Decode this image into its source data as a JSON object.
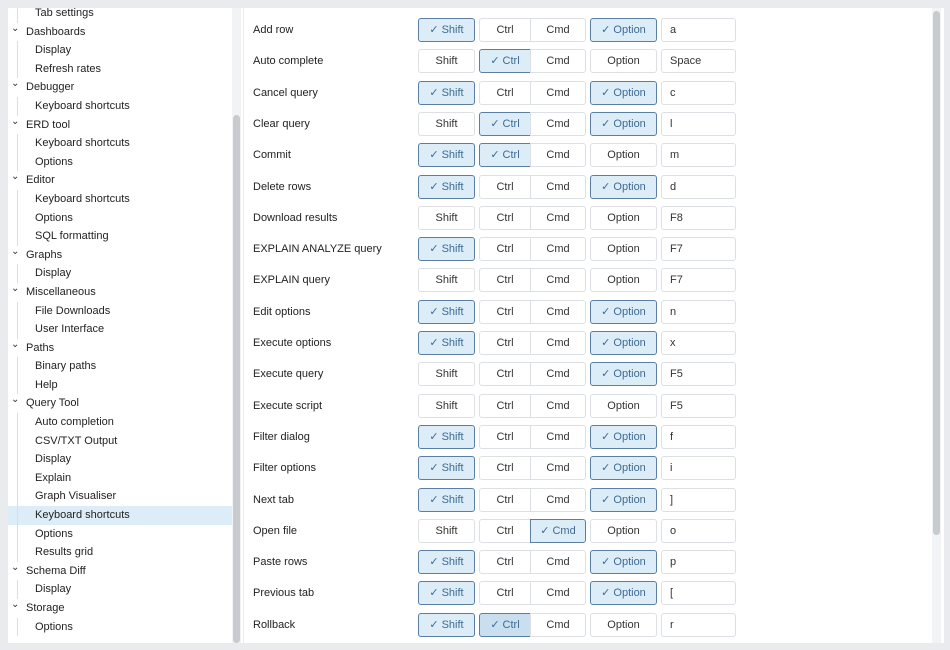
{
  "sidebar": {
    "items": [
      {
        "label": "Tab settings",
        "level": 1
      },
      {
        "label": "Dashboards",
        "level": 0
      },
      {
        "label": "Display",
        "level": 1
      },
      {
        "label": "Refresh rates",
        "level": 1
      },
      {
        "label": "Debugger",
        "level": 0
      },
      {
        "label": "Keyboard shortcuts",
        "level": 1
      },
      {
        "label": "ERD tool",
        "level": 0
      },
      {
        "label": "Keyboard shortcuts",
        "level": 1
      },
      {
        "label": "Options",
        "level": 1
      },
      {
        "label": "Editor",
        "level": 0
      },
      {
        "label": "Keyboard shortcuts",
        "level": 1
      },
      {
        "label": "Options",
        "level": 1
      },
      {
        "label": "SQL formatting",
        "level": 1
      },
      {
        "label": "Graphs",
        "level": 0
      },
      {
        "label": "Display",
        "level": 1
      },
      {
        "label": "Miscellaneous",
        "level": 0
      },
      {
        "label": "File Downloads",
        "level": 1
      },
      {
        "label": "User Interface",
        "level": 1
      },
      {
        "label": "Paths",
        "level": 0
      },
      {
        "label": "Binary paths",
        "level": 1
      },
      {
        "label": "Help",
        "level": 1
      },
      {
        "label": "Query Tool",
        "level": 0
      },
      {
        "label": "Auto completion",
        "level": 1
      },
      {
        "label": "CSV/TXT Output",
        "level": 1
      },
      {
        "label": "Display",
        "level": 1
      },
      {
        "label": "Explain",
        "level": 1
      },
      {
        "label": "Graph Visualiser",
        "level": 1
      },
      {
        "label": "Keyboard shortcuts",
        "level": 1,
        "selected": true
      },
      {
        "label": "Options",
        "level": 1
      },
      {
        "label": "Results grid",
        "level": 1
      },
      {
        "label": "Schema Diff",
        "level": 0
      },
      {
        "label": "Display",
        "level": 1
      },
      {
        "label": "Storage",
        "level": 0
      },
      {
        "label": "Options",
        "level": 1
      }
    ]
  },
  "modifier_labels": {
    "shift": "Shift",
    "ctrl": "Ctrl",
    "cmd": "Cmd",
    "option": "Option"
  },
  "check_icon": "✓",
  "shortcuts": [
    {
      "label": "Add row",
      "shift": true,
      "ctrl": false,
      "cmd": false,
      "option": true,
      "key": "a"
    },
    {
      "label": "Auto complete",
      "shift": false,
      "ctrl": true,
      "cmd": false,
      "option": false,
      "key": "Space"
    },
    {
      "label": "Cancel query",
      "shift": true,
      "ctrl": false,
      "cmd": false,
      "option": true,
      "key": "c"
    },
    {
      "label": "Clear query",
      "shift": false,
      "ctrl": true,
      "cmd": false,
      "option": true,
      "key": "l"
    },
    {
      "label": "Commit",
      "shift": true,
      "ctrl": true,
      "cmd": false,
      "option": false,
      "key": "m"
    },
    {
      "label": "Delete rows",
      "shift": true,
      "ctrl": false,
      "cmd": false,
      "option": true,
      "key": "d"
    },
    {
      "label": "Download results",
      "shift": false,
      "ctrl": false,
      "cmd": false,
      "option": false,
      "key": "F8"
    },
    {
      "label": "EXPLAIN ANALYZE query",
      "shift": true,
      "ctrl": false,
      "cmd": false,
      "option": false,
      "key": "F7"
    },
    {
      "label": "EXPLAIN query",
      "shift": false,
      "ctrl": false,
      "cmd": false,
      "option": false,
      "key": "F7"
    },
    {
      "label": "Edit options",
      "shift": true,
      "ctrl": false,
      "cmd": false,
      "option": true,
      "key": "n"
    },
    {
      "label": "Execute options",
      "shift": true,
      "ctrl": false,
      "cmd": false,
      "option": true,
      "key": "x"
    },
    {
      "label": "Execute query",
      "shift": false,
      "ctrl": false,
      "cmd": false,
      "option": true,
      "key": "F5"
    },
    {
      "label": "Execute script",
      "shift": false,
      "ctrl": false,
      "cmd": false,
      "option": false,
      "key": "F5"
    },
    {
      "label": "Filter dialog",
      "shift": true,
      "ctrl": false,
      "cmd": false,
      "option": true,
      "key": "f"
    },
    {
      "label": "Filter options",
      "shift": true,
      "ctrl": false,
      "cmd": false,
      "option": true,
      "key": "i"
    },
    {
      "label": "Next tab",
      "shift": true,
      "ctrl": false,
      "cmd": false,
      "option": true,
      "key": "]"
    },
    {
      "label": "Open file",
      "shift": false,
      "ctrl": false,
      "cmd": true,
      "option": false,
      "key": "o"
    },
    {
      "label": "Paste rows",
      "shift": true,
      "ctrl": false,
      "cmd": false,
      "option": true,
      "key": "p"
    },
    {
      "label": "Previous tab",
      "shift": true,
      "ctrl": false,
      "cmd": false,
      "option": true,
      "key": "["
    },
    {
      "label": "Rollback",
      "shift": true,
      "ctrl": true,
      "cmd": false,
      "option": false,
      "key": "r",
      "hovered": "ctrl"
    }
  ]
}
